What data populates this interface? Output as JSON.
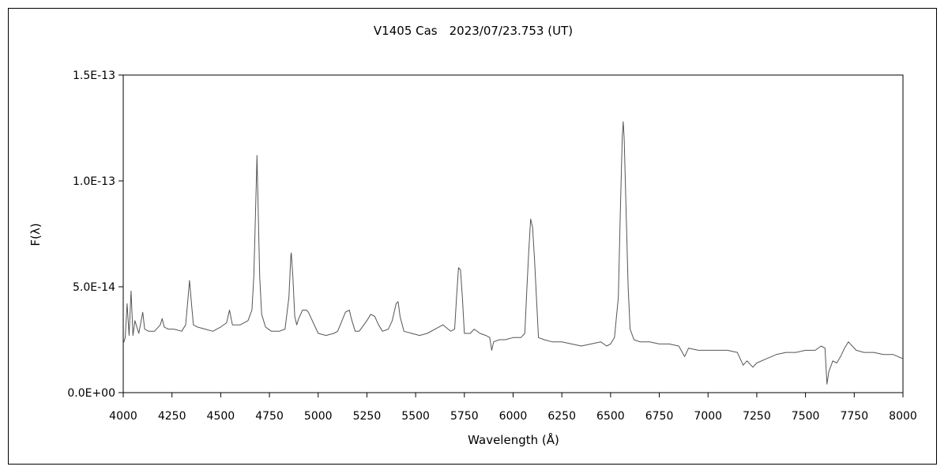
{
  "chart_data": {
    "type": "line",
    "title": "V1405 Cas　2023/07/23.753 (UT)",
    "xlabel": "Wavelength (Å)",
    "ylabel": "F(λ)",
    "xlim": [
      4000,
      8000
    ],
    "ylim": [
      0,
      1.5e-13
    ],
    "x_ticks": [
      4000,
      4250,
      4500,
      4750,
      5000,
      5250,
      5500,
      5750,
      6000,
      6250,
      6500,
      6750,
      7000,
      7250,
      7500,
      7750,
      8000
    ],
    "x_tick_labels": [
      "4000",
      "4250",
      "4500",
      "4750",
      "5000",
      "5250",
      "5500",
      "5750",
      "6000",
      "6250",
      "6500",
      "6750",
      "7000",
      "7250",
      "7500",
      "7750",
      "8000"
    ],
    "y_ticks": [
      0,
      5e-14,
      1e-13,
      1.5e-13
    ],
    "y_tick_labels": [
      "0.0E+00",
      "5.0E-14",
      "1.0E-13",
      "1.5E-13"
    ],
    "grid": false,
    "legend": "none",
    "series": [
      {
        "color": "#555555",
        "x": [
          4000,
          4010,
          4020,
          4030,
          4040,
          4050,
          4060,
          4080,
          4100,
          4110,
          4130,
          4160,
          4190,
          4200,
          4210,
          4230,
          4260,
          4300,
          4320,
          4330,
          4340,
          4350,
          4360,
          4380,
          4420,
          4460,
          4500,
          4530,
          4545,
          4560,
          4600,
          4640,
          4660,
          4670,
          4680,
          4686,
          4690,
          4700,
          4710,
          4730,
          4760,
          4800,
          4830,
          4850,
          4860,
          4862,
          4870,
          4880,
          4890,
          4900,
          4920,
          4940,
          4950,
          4970,
          5000,
          5040,
          5080,
          5100,
          5140,
          5160,
          5170,
          5190,
          5210,
          5250,
          5270,
          5290,
          5310,
          5330,
          5360,
          5380,
          5400,
          5410,
          5420,
          5440,
          5480,
          5520,
          5560,
          5600,
          5640,
          5680,
          5700,
          5710,
          5720,
          5730,
          5740,
          5750,
          5780,
          5800,
          5830,
          5860,
          5880,
          5890,
          5900,
          5930,
          5960,
          6000,
          6040,
          6060,
          6070,
          6080,
          6090,
          6100,
          6110,
          6130,
          6160,
          6200,
          6250,
          6300,
          6350,
          6400,
          6450,
          6480,
          6500,
          6520,
          6540,
          6550,
          6560,
          6565,
          6570,
          6580,
          6590,
          6600,
          6620,
          6650,
          6700,
          6750,
          6800,
          6850,
          6880,
          6900,
          6950,
          7000,
          7050,
          7100,
          7150,
          7180,
          7200,
          7230,
          7250,
          7300,
          7350,
          7400,
          7450,
          7500,
          7550,
          7580,
          7600,
          7610,
          7620,
          7640,
          7660,
          7680,
          7700,
          7720,
          7740,
          7760,
          7800,
          7850,
          7900,
          7950,
          8000
        ],
        "y": [
          2.3e-14,
          2.6e-14,
          4.2e-14,
          2.7e-14,
          4.8e-14,
          2.7e-14,
          3.4e-14,
          2.8e-14,
          3.8e-14,
          3e-14,
          2.9e-14,
          2.9e-14,
          3.2e-14,
          3.5e-14,
          3.1e-14,
          3e-14,
          3e-14,
          2.9e-14,
          3.2e-14,
          4.2e-14,
          5.3e-14,
          4.2e-14,
          3.2e-14,
          3.1e-14,
          3e-14,
          2.9e-14,
          3.1e-14,
          3.3e-14,
          3.9e-14,
          3.2e-14,
          3.2e-14,
          3.4e-14,
          3.9e-14,
          5.5e-14,
          9e-14,
          1.12e-13,
          9.5e-14,
          5.5e-14,
          3.7e-14,
          3.1e-14,
          2.9e-14,
          2.9e-14,
          3e-14,
          4.5e-14,
          6.5e-14,
          6.6e-14,
          5.5e-14,
          3.6e-14,
          3.2e-14,
          3.5e-14,
          3.9e-14,
          3.9e-14,
          3.8e-14,
          3.4e-14,
          2.8e-14,
          2.7e-14,
          2.8e-14,
          2.9e-14,
          3.8e-14,
          3.9e-14,
          3.5e-14,
          2.9e-14,
          2.9e-14,
          3.4e-14,
          3.7e-14,
          3.6e-14,
          3.2e-14,
          2.9e-14,
          3e-14,
          3.4e-14,
          4.2e-14,
          4.3e-14,
          3.6e-14,
          2.9e-14,
          2.8e-14,
          2.7e-14,
          2.8e-14,
          3e-14,
          3.2e-14,
          2.9e-14,
          3e-14,
          4.5e-14,
          5.9e-14,
          5.8e-14,
          4.5e-14,
          2.8e-14,
          2.8e-14,
          3e-14,
          2.8e-14,
          2.7e-14,
          2.6e-14,
          2e-14,
          2.4e-14,
          2.5e-14,
          2.5e-14,
          2.6e-14,
          2.6e-14,
          2.8e-14,
          4.8e-14,
          6.6e-14,
          8.2e-14,
          7.8e-14,
          6.3e-14,
          2.6e-14,
          2.5e-14,
          2.4e-14,
          2.4e-14,
          2.3e-14,
          2.2e-14,
          2.3e-14,
          2.4e-14,
          2.2e-14,
          2.3e-14,
          2.6e-14,
          4.5e-14,
          8.5e-14,
          1.21e-13,
          1.28e-13,
          1.2e-13,
          8.5e-14,
          5e-14,
          3e-14,
          2.5e-14,
          2.4e-14,
          2.4e-14,
          2.3e-14,
          2.3e-14,
          2.2e-14,
          1.7e-14,
          2.1e-14,
          2e-14,
          2e-14,
          2e-14,
          2e-14,
          1.9e-14,
          1.3e-14,
          1.5e-14,
          1.2e-14,
          1.4e-14,
          1.6e-14,
          1.8e-14,
          1.9e-14,
          1.9e-14,
          2e-14,
          2e-14,
          2.2e-14,
          2.1e-14,
          4e-15,
          1e-14,
          1.5e-14,
          1.4e-14,
          1.7e-14,
          2.1e-14,
          2.4e-14,
          2.2e-14,
          2e-14,
          1.9e-14,
          1.9e-14,
          1.8e-14,
          1.8e-14,
          1.6e-14
        ]
      }
    ]
  }
}
